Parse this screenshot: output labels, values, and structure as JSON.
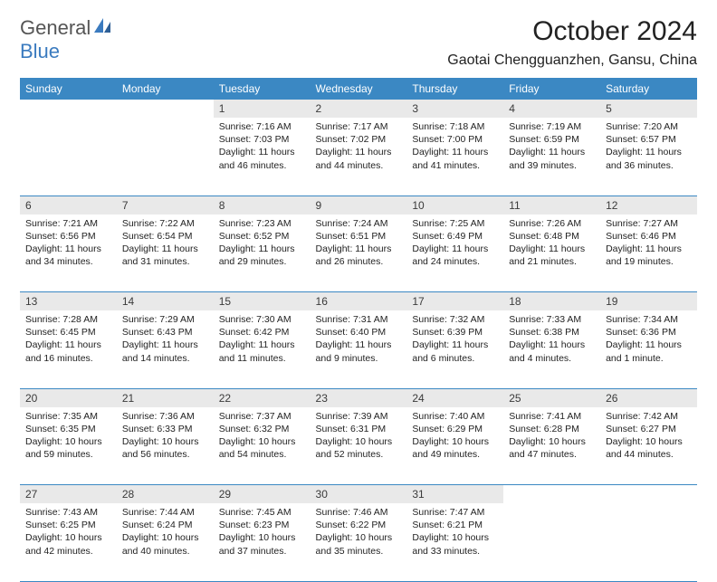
{
  "logo": {
    "text1": "General",
    "text2": "Blue"
  },
  "title": "October 2024",
  "location": "Gaotai Chengguanzhen, Gansu, China",
  "colors": {
    "header_bg": "#3b88c3",
    "header_text": "#ffffff",
    "daynum_bg": "#e9e9e9",
    "border": "#3b88c3",
    "logo_gray": "#555555",
    "logo_blue": "#3b7bbf"
  },
  "weekdays": [
    "Sunday",
    "Monday",
    "Tuesday",
    "Wednesday",
    "Thursday",
    "Friday",
    "Saturday"
  ],
  "weeks": [
    {
      "nums": [
        "",
        "",
        "1",
        "2",
        "3",
        "4",
        "5"
      ],
      "cells": [
        null,
        null,
        {
          "sunrise": "7:16 AM",
          "sunset": "7:03 PM",
          "day_h": 11,
          "day_m": 46
        },
        {
          "sunrise": "7:17 AM",
          "sunset": "7:02 PM",
          "day_h": 11,
          "day_m": 44
        },
        {
          "sunrise": "7:18 AM",
          "sunset": "7:00 PM",
          "day_h": 11,
          "day_m": 41
        },
        {
          "sunrise": "7:19 AM",
          "sunset": "6:59 PM",
          "day_h": 11,
          "day_m": 39
        },
        {
          "sunrise": "7:20 AM",
          "sunset": "6:57 PM",
          "day_h": 11,
          "day_m": 36
        }
      ]
    },
    {
      "nums": [
        "6",
        "7",
        "8",
        "9",
        "10",
        "11",
        "12"
      ],
      "cells": [
        {
          "sunrise": "7:21 AM",
          "sunset": "6:56 PM",
          "day_h": 11,
          "day_m": 34
        },
        {
          "sunrise": "7:22 AM",
          "sunset": "6:54 PM",
          "day_h": 11,
          "day_m": 31
        },
        {
          "sunrise": "7:23 AM",
          "sunset": "6:52 PM",
          "day_h": 11,
          "day_m": 29
        },
        {
          "sunrise": "7:24 AM",
          "sunset": "6:51 PM",
          "day_h": 11,
          "day_m": 26
        },
        {
          "sunrise": "7:25 AM",
          "sunset": "6:49 PM",
          "day_h": 11,
          "day_m": 24
        },
        {
          "sunrise": "7:26 AM",
          "sunset": "6:48 PM",
          "day_h": 11,
          "day_m": 21
        },
        {
          "sunrise": "7:27 AM",
          "sunset": "6:46 PM",
          "day_h": 11,
          "day_m": 19
        }
      ]
    },
    {
      "nums": [
        "13",
        "14",
        "15",
        "16",
        "17",
        "18",
        "19"
      ],
      "cells": [
        {
          "sunrise": "7:28 AM",
          "sunset": "6:45 PM",
          "day_h": 11,
          "day_m": 16
        },
        {
          "sunrise": "7:29 AM",
          "sunset": "6:43 PM",
          "day_h": 11,
          "day_m": 14
        },
        {
          "sunrise": "7:30 AM",
          "sunset": "6:42 PM",
          "day_h": 11,
          "day_m": 11
        },
        {
          "sunrise": "7:31 AM",
          "sunset": "6:40 PM",
          "day_h": 11,
          "day_m": 9
        },
        {
          "sunrise": "7:32 AM",
          "sunset": "6:39 PM",
          "day_h": 11,
          "day_m": 6
        },
        {
          "sunrise": "7:33 AM",
          "sunset": "6:38 PM",
          "day_h": 11,
          "day_m": 4
        },
        {
          "sunrise": "7:34 AM",
          "sunset": "6:36 PM",
          "day_h": 11,
          "day_m": 1
        }
      ]
    },
    {
      "nums": [
        "20",
        "21",
        "22",
        "23",
        "24",
        "25",
        "26"
      ],
      "cells": [
        {
          "sunrise": "7:35 AM",
          "sunset": "6:35 PM",
          "day_h": 10,
          "day_m": 59
        },
        {
          "sunrise": "7:36 AM",
          "sunset": "6:33 PM",
          "day_h": 10,
          "day_m": 56
        },
        {
          "sunrise": "7:37 AM",
          "sunset": "6:32 PM",
          "day_h": 10,
          "day_m": 54
        },
        {
          "sunrise": "7:39 AM",
          "sunset": "6:31 PM",
          "day_h": 10,
          "day_m": 52
        },
        {
          "sunrise": "7:40 AM",
          "sunset": "6:29 PM",
          "day_h": 10,
          "day_m": 49
        },
        {
          "sunrise": "7:41 AM",
          "sunset": "6:28 PM",
          "day_h": 10,
          "day_m": 47
        },
        {
          "sunrise": "7:42 AM",
          "sunset": "6:27 PM",
          "day_h": 10,
          "day_m": 44
        }
      ]
    },
    {
      "nums": [
        "27",
        "28",
        "29",
        "30",
        "31",
        "",
        ""
      ],
      "cells": [
        {
          "sunrise": "7:43 AM",
          "sunset": "6:25 PM",
          "day_h": 10,
          "day_m": 42
        },
        {
          "sunrise": "7:44 AM",
          "sunset": "6:24 PM",
          "day_h": 10,
          "day_m": 40
        },
        {
          "sunrise": "7:45 AM",
          "sunset": "6:23 PM",
          "day_h": 10,
          "day_m": 37
        },
        {
          "sunrise": "7:46 AM",
          "sunset": "6:22 PM",
          "day_h": 10,
          "day_m": 35
        },
        {
          "sunrise": "7:47 AM",
          "sunset": "6:21 PM",
          "day_h": 10,
          "day_m": 33
        },
        null,
        null
      ]
    }
  ]
}
